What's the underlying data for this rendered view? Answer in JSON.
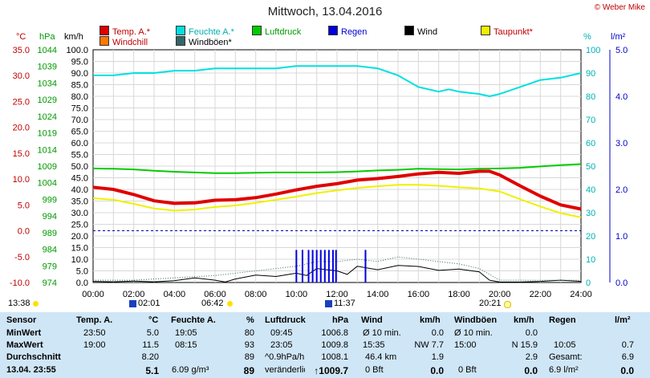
{
  "title": "Mittwoch, 13.04.2016",
  "copyright": "© Weber Mike",
  "legend": [
    {
      "label": "Temp. A.*",
      "color": "#e00000"
    },
    {
      "label": "Feuchte A.*",
      "color": "#00e0e0"
    },
    {
      "label": "Luftdruck",
      "color": "#00cc00"
    },
    {
      "label": "Regen",
      "color": "#0000dd"
    },
    {
      "label": "Wind",
      "color": "#000000"
    },
    {
      "label": "Taupunkt*",
      "color": "#f0f000"
    },
    {
      "label": "Windchill",
      "color": "#ff7700"
    },
    {
      "label": "Windböen*",
      "color": "#336666"
    }
  ],
  "axis_units": {
    "temp": "°C",
    "pressure": "hPa",
    "wind": "km/h",
    "humidity": "%",
    "rain": "l/m²"
  },
  "sun": {
    "sunrise_label": "06:42",
    "sunset_label": "20:21",
    "dawn_label": "13:38",
    "moonrise_label": "02:01",
    "moonset_label": "11:37"
  },
  "chart_data": {
    "type": "line",
    "x_label": "time",
    "x_ticks": [
      "00:00",
      "02:00",
      "04:00",
      "06:00",
      "08:00",
      "10:00",
      "12:00",
      "14:00",
      "16:00",
      "18:00",
      "20:00",
      "22:00",
      "24:00"
    ],
    "xlim": [
      0,
      24
    ],
    "axes": {
      "temp": {
        "ylim": [
          -10,
          35
        ],
        "ticks": [
          "35.0",
          "30.0",
          "25.0",
          "20.0",
          "15.0",
          "10.0",
          "5.0",
          "0.0",
          "-5.0",
          "-10.0"
        ]
      },
      "pressure": {
        "ylim": [
          974,
          1044
        ],
        "ticks": [
          "1044",
          "1039",
          "1034",
          "1029",
          "1024",
          "1019",
          "1014",
          "1009",
          "1004",
          "999",
          "994",
          "989",
          "984",
          "979",
          "974"
        ]
      },
      "wind": {
        "ylim": [
          0,
          100
        ],
        "ticks": [
          "100.0",
          "95.0",
          "90.0",
          "85.0",
          "80.0",
          "75.0",
          "70.0",
          "65.0",
          "60.0",
          "55.0",
          "50.0",
          "45.0",
          "40.0",
          "35.0",
          "30.0",
          "25.0",
          "20.0",
          "15.0",
          "10.0",
          "5.0",
          "0.0"
        ]
      },
      "humidity": {
        "ylim": [
          0,
          100
        ],
        "ticks": [
          "100",
          "90",
          "80",
          "70",
          "60",
          "50",
          "40",
          "30",
          "20",
          "10",
          "0"
        ]
      },
      "rain": {
        "ylim": [
          0,
          5
        ],
        "ticks": [
          "5.0",
          "4.0",
          "3.0",
          "2.0",
          "1.0",
          "0.0"
        ]
      }
    },
    "series": [
      {
        "name": "Temp. A.*",
        "axis": "temp",
        "color": "#e00000",
        "x": [
          0,
          1,
          2,
          3,
          4,
          5,
          6,
          7,
          8,
          9,
          10,
          11,
          12,
          13,
          14,
          15,
          16,
          17,
          18,
          19,
          19.5,
          20,
          21,
          22,
          23,
          24
        ],
        "y": [
          8.4,
          8.0,
          7.0,
          5.8,
          5.3,
          5.4,
          5.9,
          6.0,
          6.4,
          7.1,
          7.9,
          8.6,
          9.1,
          9.8,
          10.1,
          10.5,
          11.0,
          11.3,
          11.1,
          11.5,
          11.5,
          10.8,
          8.7,
          6.7,
          5.0,
          4.2
        ]
      },
      {
        "name": "Feuchte A.*",
        "axis": "humidity",
        "color": "#00e0e0",
        "x": [
          0,
          1,
          2,
          3,
          4,
          5,
          6,
          7,
          8,
          9,
          10,
          11,
          12,
          13,
          14,
          15,
          16,
          17,
          17.5,
          18,
          19,
          19.5,
          20,
          21,
          22,
          23,
          24
        ],
        "y": [
          89,
          89,
          90,
          90,
          91,
          91,
          92,
          92,
          92,
          92,
          93,
          93,
          93,
          93,
          92,
          89,
          84,
          82,
          83,
          82,
          81,
          80,
          81,
          84,
          87,
          88,
          90
        ]
      },
      {
        "name": "Luftdruck",
        "axis": "pressure",
        "color": "#00cc00",
        "x": [
          0,
          1,
          2,
          3,
          4,
          5,
          6,
          7,
          8,
          9,
          10,
          11,
          12,
          13,
          14,
          15,
          16,
          17,
          18,
          19,
          20,
          21,
          22,
          23,
          24
        ],
        "y": [
          1008.3,
          1008.2,
          1008.0,
          1007.6,
          1007.3,
          1007.1,
          1006.9,
          1006.9,
          1007.0,
          1007.1,
          1007.1,
          1007.1,
          1007.2,
          1007.4,
          1007.7,
          1007.9,
          1008.2,
          1008.1,
          1008.0,
          1008.2,
          1008.3,
          1008.5,
          1008.9,
          1009.3,
          1009.6
        ]
      },
      {
        "name": "Taupunkt*",
        "axis": "temp",
        "color": "#f0f000",
        "x": [
          0,
          1,
          2,
          3,
          4,
          5,
          6,
          7,
          8,
          9,
          10,
          11,
          12,
          13,
          14,
          15,
          16,
          17,
          18,
          19,
          20,
          21,
          22,
          23,
          24
        ],
        "y": [
          6.3,
          6.0,
          5.2,
          4.3,
          3.9,
          4.1,
          4.6,
          4.9,
          5.4,
          6.0,
          6.6,
          7.3,
          7.8,
          8.3,
          8.6,
          8.9,
          8.9,
          8.7,
          8.4,
          8.2,
          7.6,
          6.1,
          4.7,
          3.4,
          2.6
        ]
      },
      {
        "name": "Wind",
        "axis": "wind",
        "color": "#000000",
        "x": [
          0,
          1,
          2,
          3,
          4,
          5,
          6,
          6.5,
          7,
          8,
          9,
          10,
          10.5,
          11,
          12,
          12.5,
          13,
          13.5,
          14,
          15,
          16,
          17,
          18,
          19,
          19.5,
          20,
          21,
          22,
          23,
          24
        ],
        "y": [
          0.5,
          0.3,
          0.6,
          0.3,
          0.8,
          2.0,
          1.0,
          0.2,
          1.5,
          3.2,
          2.6,
          4.0,
          3.0,
          6.0,
          5.0,
          3.5,
          7.0,
          6.2,
          5.5,
          7.3,
          6.9,
          5.2,
          5.8,
          4.6,
          1.0,
          0.2,
          0.2,
          0.5,
          1.0,
          0.5
        ]
      },
      {
        "name": "Windböen*",
        "axis": "wind",
        "color": "#336666",
        "x": [
          0,
          2,
          4,
          6,
          8,
          9,
          10,
          11,
          12,
          13,
          14,
          15,
          16,
          17,
          18,
          19,
          20,
          22,
          24
        ],
        "y": [
          1,
          1,
          2,
          3,
          5,
          6,
          7,
          9,
          9,
          10,
          9,
          11,
          10,
          9,
          8,
          6,
          1,
          1,
          1
        ]
      },
      {
        "name": "Regen",
        "axis": "rain",
        "type": "bar",
        "color": "#0000dd",
        "x": [
          10.0,
          10.3,
          10.6,
          10.8,
          11.0,
          11.2,
          11.4,
          11.6,
          11.8,
          11.95,
          13.4
        ],
        "y": [
          0.7,
          0.7,
          0.7,
          0.7,
          0.7,
          0.7,
          0.7,
          0.7,
          0.7,
          0.7,
          0.7
        ]
      }
    ],
    "reference_line": {
      "axis": "temp",
      "value": 0.0,
      "style": "dashed",
      "color": "#0000aa"
    }
  },
  "table": {
    "headers": {
      "sensor": "Sensor",
      "temp": "Temp. A.",
      "temp_unit": "°C",
      "hum": "Feuchte A.",
      "hum_unit": "%",
      "press": "Luftdruck",
      "press_unit": "hPa",
      "wind": "Wind",
      "wind_unit": "km/h",
      "gust": "Windböen",
      "gust_unit": "km/h",
      "rain": "Regen",
      "rain_unit": "l/m²"
    },
    "rows": [
      {
        "label": "MinWert",
        "temp_time": "23:50",
        "temp_val": "5.0",
        "hum_time": "19:05",
        "hum_val": "80",
        "press_time": "09:45",
        "press_val": "1006.8",
        "wind_time": "Ø 10 min.",
        "wind_val": "0.0",
        "gust_time": "Ø 10 min.",
        "gust_val": "0.0",
        "rain_time": "",
        "rain_val": ""
      },
      {
        "label": "MaxWert",
        "temp_time": "19:00",
        "temp_val": "11.5",
        "hum_time": "08:15",
        "hum_val": "93",
        "press_time": "23:05",
        "press_val": "1009.8",
        "wind_time": "15:35",
        "wind_val": "NW 7.7",
        "gust_time": "15:00",
        "gust_val": "N 15.9",
        "rain_time": "10:05",
        "rain_val": "0.7"
      },
      {
        "label": "Durchschnitt",
        "temp_time": "",
        "temp_val": "8.20",
        "hum_time": "",
        "hum_val": "89",
        "press_time": "^0.9hPa/h",
        "press_val": "1008.1",
        "wind_time": "46.4 km",
        "wind_val": "1.9",
        "gust_time": "",
        "gust_val": "2.9",
        "rain_time": "Gesamt:",
        "rain_val": "6.9"
      },
      {
        "label": "13.04. 23:55",
        "temp_time": "",
        "temp_val": "5.1",
        "hum_time": "6.09 g/m³",
        "hum_val": "89",
        "press_time": "veränderlich",
        "press_val": "↑1009.7",
        "wind_time": "0 Bft",
        "wind_val": "0.0",
        "gust_time": "0 Bft",
        "gust_val": "0.0",
        "rain_time": "6.9 l/m²",
        "rain_val": "0.0"
      }
    ]
  }
}
